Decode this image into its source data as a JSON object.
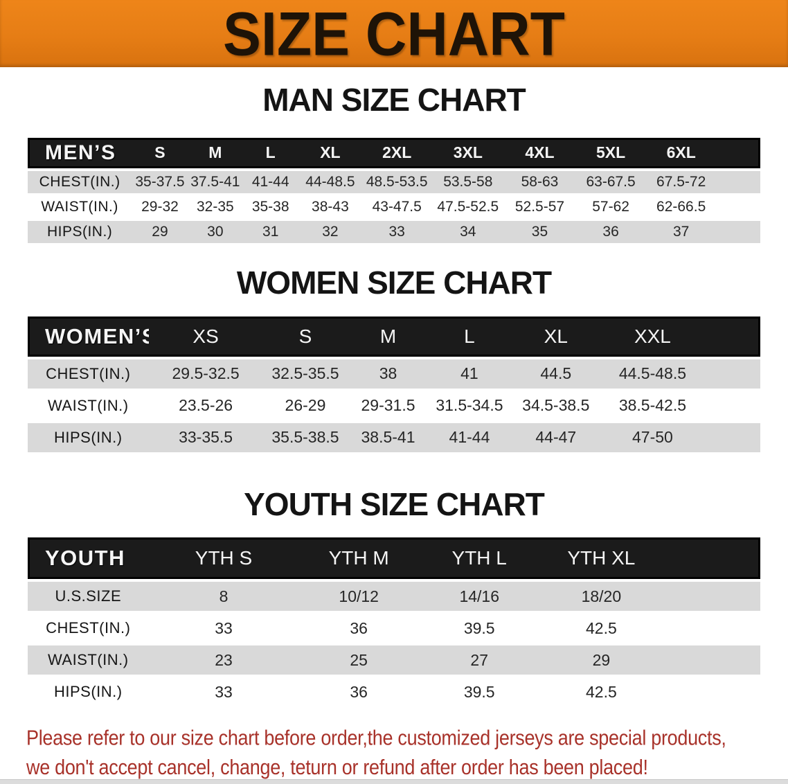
{
  "banner": {
    "title": "SIZE CHART"
  },
  "colors": {
    "banner_bg": "#e67d15",
    "banner_bg_top": "#ee8519",
    "banner_bg_bottom": "#d8720f",
    "header_bar": "#1b1b1b",
    "row_shade": "#d9d9d9",
    "footer_red": "#a8322a"
  },
  "sections": [
    {
      "heading": "MAN SIZE CHART",
      "table": {
        "header_label": "MEN’S",
        "columns": [
          "S",
          "M",
          "L",
          "XL",
          "2XL",
          "3XL",
          "4XL",
          "5XL",
          "6XL"
        ],
        "rows": [
          {
            "label": "CHEST(IN.)",
            "values": [
              "35-37.5",
              "37.5-41",
              "41-44",
              "44-48.5",
              "48.5-53.5",
              "53.5-58",
              "58-63",
              "63-67.5",
              "67.5-72"
            ]
          },
          {
            "label": "WAIST(IN.)",
            "values": [
              "29-32",
              "32-35",
              "35-38",
              "38-43",
              "43-47.5",
              "47.5-52.5",
              "52.5-57",
              "57-62",
              "62-66.5"
            ]
          },
          {
            "label": "HIPS(IN.)",
            "values": [
              "29",
              "30",
              "31",
              "32",
              "33",
              "34",
              "35",
              "36",
              "37"
            ]
          }
        ]
      }
    },
    {
      "heading": "WOMEN SIZE CHART",
      "table": {
        "header_label": "WOMEN’S",
        "columns": [
          "XS",
          "S",
          "M",
          "L",
          "XL",
          "XXL"
        ],
        "rows": [
          {
            "label": "CHEST(IN.)",
            "values": [
              "29.5-32.5",
              "32.5-35.5",
              "38",
              "41",
              "44.5",
              "44.5-48.5"
            ]
          },
          {
            "label": "WAIST(IN.)",
            "values": [
              "23.5-26",
              "26-29",
              "29-31.5",
              "31.5-34.5",
              "34.5-38.5",
              "38.5-42.5"
            ]
          },
          {
            "label": "HIPS(IN.)",
            "values": [
              "33-35.5",
              "35.5-38.5",
              "38.5-41",
              "41-44",
              "44-47",
              "47-50"
            ]
          }
        ]
      }
    },
    {
      "heading": "YOUTH SIZE CHART",
      "table": {
        "header_label": "YOUTH",
        "columns": [
          "YTH S",
          "YTH M",
          "YTH L",
          "YTH XL"
        ],
        "rows": [
          {
            "label": "U.S.SIZE",
            "values": [
              "8",
              "10/12",
              "14/16",
              "18/20"
            ]
          },
          {
            "label": "CHEST(IN.)",
            "values": [
              "33",
              "36",
              "39.5",
              "42.5"
            ]
          },
          {
            "label": "WAIST(IN.)",
            "values": [
              "23",
              "25",
              "27",
              "29"
            ]
          },
          {
            "label": "HIPS(IN.)",
            "values": [
              "33",
              "36",
              "39.5",
              "42.5"
            ]
          }
        ]
      }
    }
  ],
  "footer": {
    "line1": "Please refer to our size chart before order,the customized jerseys are special products,",
    "line2": "we don't accept cancel, change, teturn or refund after order has been placed!"
  }
}
